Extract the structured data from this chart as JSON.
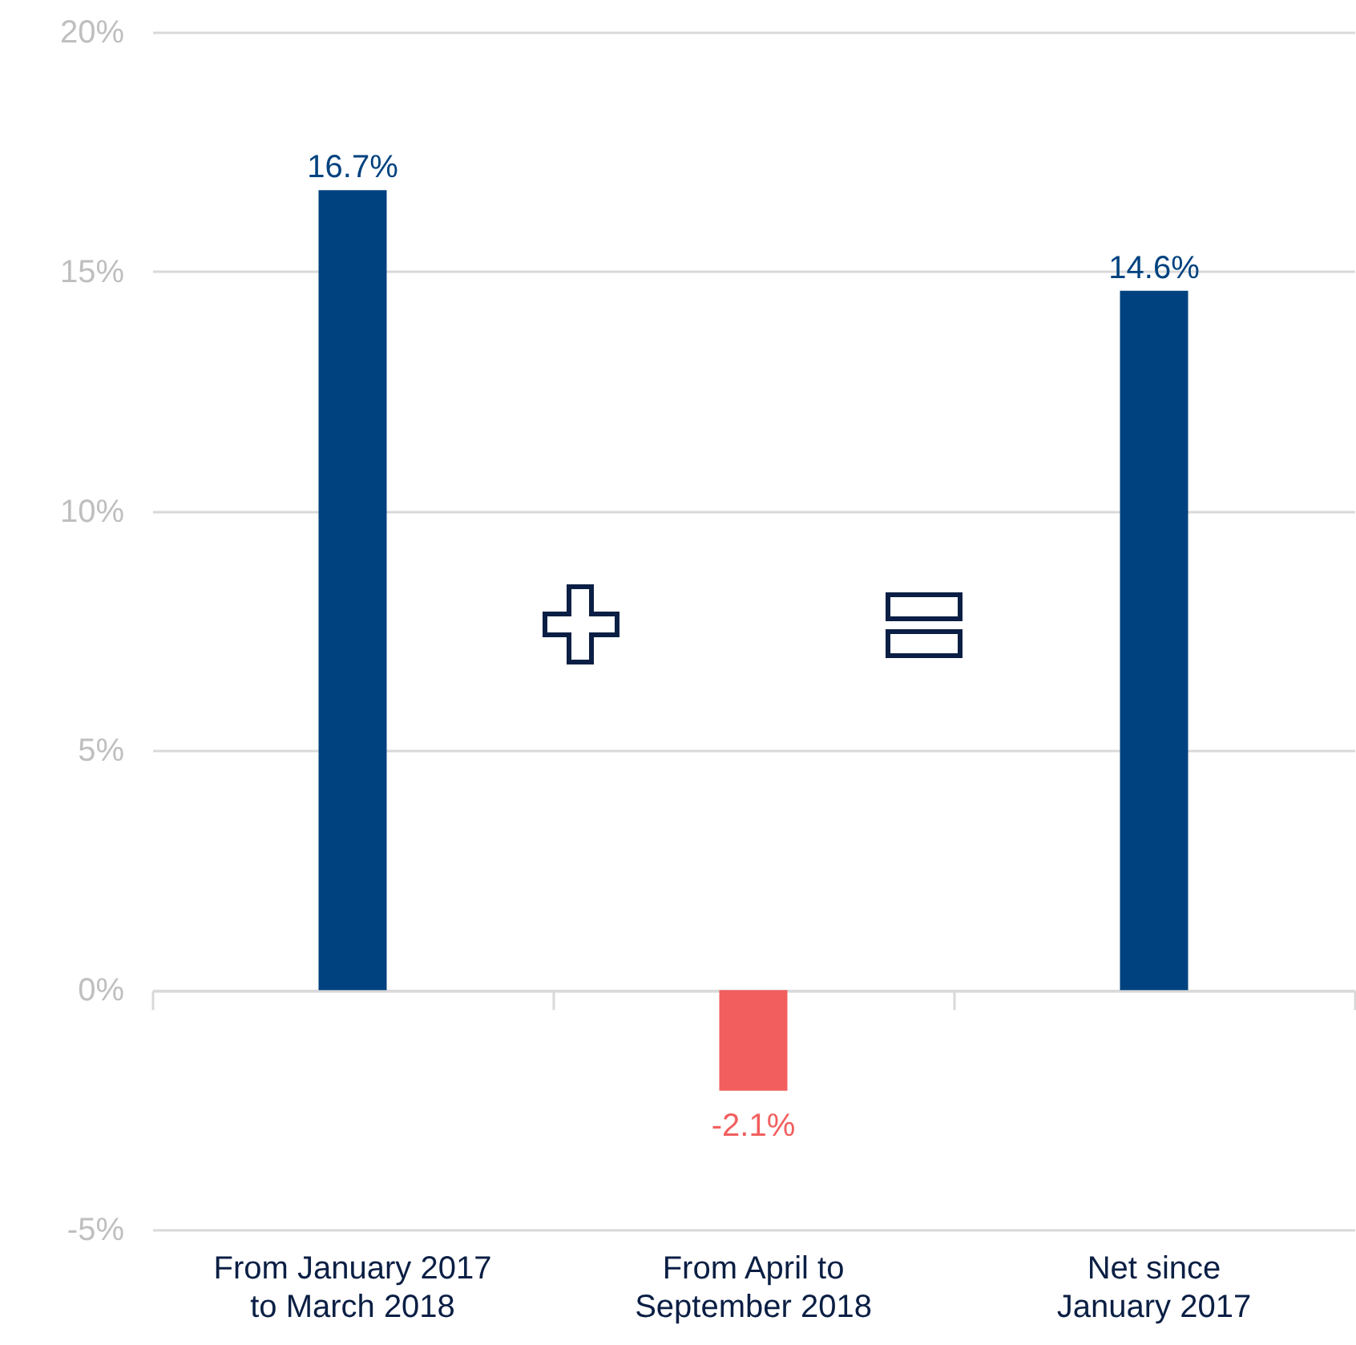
{
  "chart_data": {
    "type": "bar",
    "categories": [
      "From January 2017 to March 2018",
      "From April to September 2018",
      "Net since January 2017"
    ],
    "values": [
      16.7,
      -2.1,
      14.6
    ],
    "colors": [
      "#00427f",
      "#f25e5e",
      "#00427f"
    ],
    "value_labels": [
      "16.7%",
      "-2.1%",
      "14.6%"
    ],
    "ylim": [
      -5,
      20
    ],
    "yticks": [
      {
        "value": -5,
        "label": "-5%"
      },
      {
        "value": 0,
        "label": "0%"
      },
      {
        "value": 5,
        "label": "5%"
      },
      {
        "value": 10,
        "label": "10%"
      },
      {
        "value": 15,
        "label": "15%"
      },
      {
        "value": 20,
        "label": "20%"
      }
    ],
    "grid": "y"
  }
}
